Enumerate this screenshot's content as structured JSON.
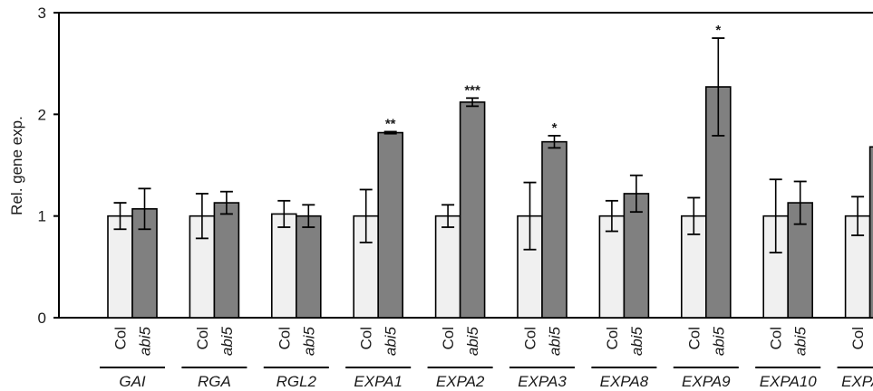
{
  "chart_data": {
    "type": "bar",
    "ylabel": "Rel. gene exp.",
    "ylim": [
      0,
      3
    ],
    "yticks": [
      "0",
      "1",
      "2",
      "3"
    ],
    "grid": false,
    "legend": "none",
    "series": [
      {
        "name": "Col",
        "color": "#f0f0f0",
        "values": [
          1.0,
          1.0,
          1.02,
          1.0,
          1.0,
          1.0,
          1.0,
          1.0,
          1.0,
          1.0
        ],
        "errors": [
          0.13,
          0.22,
          0.13,
          0.26,
          0.11,
          0.33,
          0.15,
          0.18,
          0.36,
          0.19
        ]
      },
      {
        "name": "abi5",
        "color": "#808080",
        "values": [
          1.07,
          1.13,
          1.0,
          1.82,
          2.12,
          1.73,
          1.22,
          2.27,
          1.13,
          1.68
        ],
        "errors": [
          0.2,
          0.11,
          0.11,
          0.01,
          0.04,
          0.06,
          0.18,
          0.48,
          0.21,
          0.06
        ]
      }
    ],
    "categories": [
      "GAI",
      "RGA",
      "RGL2",
      "EXPA1",
      "EXPA2",
      "EXPA3",
      "EXPA8",
      "EXPA9",
      "EXPA10",
      "EXPA20"
    ],
    "significance": [
      "",
      "",
      "",
      "**",
      "***",
      "*",
      "",
      "*",
      "",
      "**"
    ]
  }
}
